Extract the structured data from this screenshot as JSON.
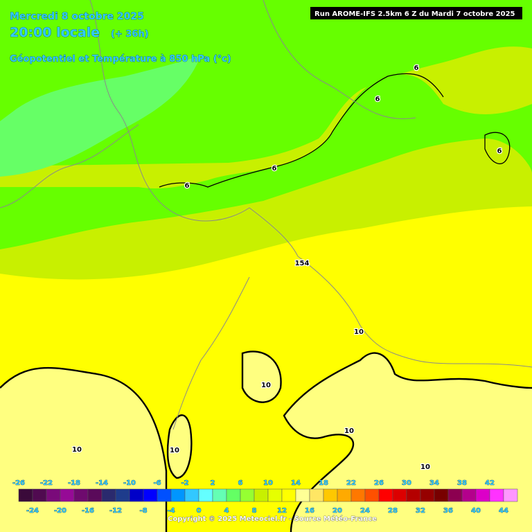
{
  "header": {
    "date": "Mercredi 8 octobre 2025",
    "time": "20:00 locale",
    "lead": "(+ 36h)",
    "field": "Géopotentiel et Température à 850 hPa (°c)",
    "run": "Run AROME-IFS 2.5km 6 Z du Mardi 7 octobre 2025"
  },
  "contour_labels": [
    "6",
    "6",
    "6",
    "6",
    "6",
    "154",
    "10",
    "10",
    "10",
    "10",
    "10",
    "10"
  ],
  "legend": {
    "steps": [
      {
        "value": -26,
        "color": "#3a0a3a"
      },
      {
        "value": -24,
        "color": "#500a50"
      },
      {
        "value": -22,
        "color": "#7a0a7a"
      },
      {
        "value": -20,
        "color": "#960a96"
      },
      {
        "value": -18,
        "color": "#6e0a6e"
      },
      {
        "value": -16,
        "color": "#5a0a5a"
      },
      {
        "value": -14,
        "color": "#2a2a6e"
      },
      {
        "value": -12,
        "color": "#1e3c8c"
      },
      {
        "value": -10,
        "color": "#0000c8"
      },
      {
        "value": -8,
        "color": "#0000ff"
      },
      {
        "value": -6,
        "color": "#0050ff"
      },
      {
        "value": -4,
        "color": "#0096ff"
      },
      {
        "value": -2,
        "color": "#32c8ff"
      },
      {
        "value": 0,
        "color": "#64ffff"
      },
      {
        "value": 2,
        "color": "#64ffb4"
      },
      {
        "value": 4,
        "color": "#64ff64"
      },
      {
        "value": 6,
        "color": "#96ff32"
      },
      {
        "value": 8,
        "color": "#c8f000"
      },
      {
        "value": 10,
        "color": "#e6ff00"
      },
      {
        "value": 12,
        "color": "#ffff00"
      },
      {
        "value": 14,
        "color": "#ffff96"
      },
      {
        "value": 16,
        "color": "#ffe664"
      },
      {
        "value": 18,
        "color": "#ffc800"
      },
      {
        "value": 20,
        "color": "#ffaa00"
      },
      {
        "value": 22,
        "color": "#ff7800"
      },
      {
        "value": 24,
        "color": "#ff5000"
      },
      {
        "value": 26,
        "color": "#ff0000"
      },
      {
        "value": 28,
        "color": "#dc0000"
      },
      {
        "value": 30,
        "color": "#b40000"
      },
      {
        "value": 32,
        "color": "#960000"
      },
      {
        "value": 34,
        "color": "#780000"
      },
      {
        "value": 36,
        "color": "#8c0050"
      },
      {
        "value": 38,
        "color": "#b4008c"
      },
      {
        "value": 40,
        "color": "#dc00c8"
      },
      {
        "value": 42,
        "color": "#ff32ff"
      },
      {
        "value": 44,
        "color": "#ff96ff"
      }
    ]
  },
  "footer": {
    "copyright": "Copyright © 2025 Meteociel.fr - Source Météo-France"
  }
}
